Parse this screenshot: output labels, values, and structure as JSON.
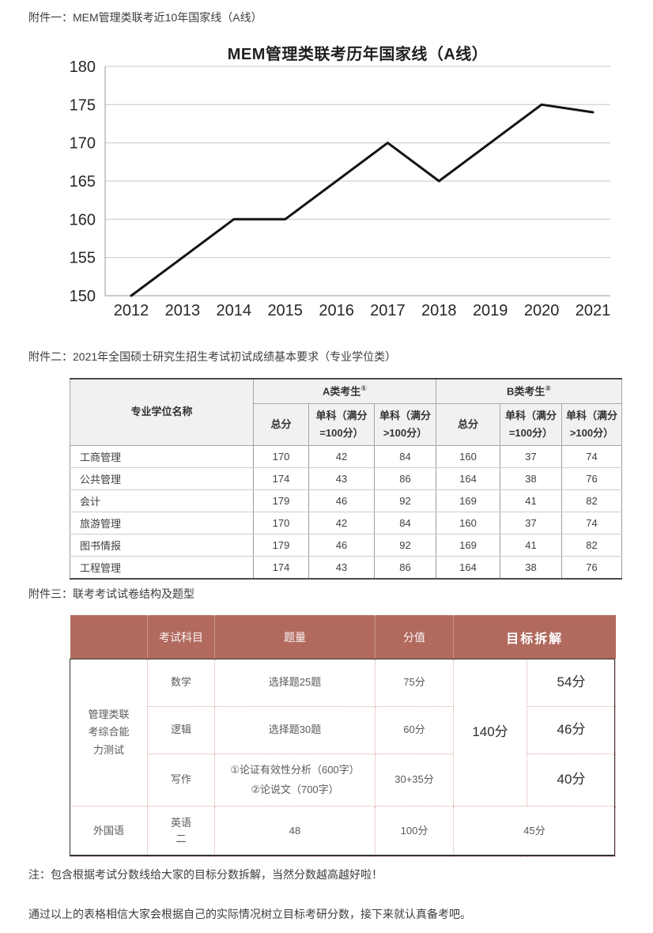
{
  "page": {
    "attachment1_heading": "附件一：MEM管理类联考近10年国家线（A线）",
    "attachment2_heading": "附件二：2021年全国硕士研究生招生考试初试成绩基本要求（专业学位类）",
    "attachment3_heading": "附件三：联考考试试卷结构及题型",
    "note1": "注：包含根据考试分数线给大家的目标分数拆解，当然分数越高越好啦！",
    "note2": "通过以上的表格相信大家会根据自己的实际情况树立目标考研分数，接下来就认真备考吧。"
  },
  "chart_data": {
    "type": "line",
    "title": "MEM管理类联考历年国家线（A线）",
    "x": [
      2012,
      2013,
      2014,
      2015,
      2016,
      2017,
      2018,
      2019,
      2020,
      2021
    ],
    "values": [
      150,
      155,
      160,
      160,
      165,
      170,
      165,
      170,
      175,
      174
    ],
    "xlabel": "",
    "ylabel": "",
    "ylim": [
      150,
      180
    ],
    "ytick_step": 5,
    "grid": true,
    "legend": "none",
    "line_color": "#141414"
  },
  "table2": {
    "col1_header": "专业学位名称",
    "group_headers": [
      {
        "label": "A类考生",
        "sup": "①"
      },
      {
        "label": "B类考生",
        "sup": "②"
      }
    ],
    "sub_headers": [
      "总分",
      "单科（满分=100分）",
      "单科（满分>100分）"
    ],
    "rows": [
      {
        "name": "工商管理",
        "values": [
          170,
          42,
          84,
          160,
          37,
          74
        ]
      },
      {
        "name": "公共管理",
        "values": [
          174,
          43,
          86,
          164,
          38,
          76
        ]
      },
      {
        "name": "会计",
        "values": [
          179,
          46,
          92,
          169,
          41,
          82
        ]
      },
      {
        "name": "旅游管理",
        "values": [
          170,
          42,
          84,
          160,
          37,
          74
        ]
      },
      {
        "name": "图书情报",
        "values": [
          179,
          46,
          92,
          169,
          41,
          82
        ]
      },
      {
        "name": "工程管理",
        "values": [
          174,
          43,
          86,
          164,
          38,
          76
        ]
      }
    ]
  },
  "table3": {
    "headers": {
      "subject": "考试科目",
      "quantity": "题量",
      "score": "分值",
      "target": "目标拆解"
    },
    "group1": {
      "label": "管理类联考综合能力测试",
      "total_target": "140分",
      "rows": [
        {
          "subject": "数学",
          "quantity": "选择题25题",
          "score": "75分",
          "target": "54分"
        },
        {
          "subject": "逻辑",
          "quantity": "选择题30题",
          "score": "60分",
          "target": "46分"
        },
        {
          "subject": "写作",
          "quantity_line1": "①论证有效性分析（600字）",
          "quantity_line2": "②论说文（700字）",
          "score": "30+35分",
          "target": "40分"
        }
      ]
    },
    "group2": {
      "label": "外国语",
      "row": {
        "subject": "英语二",
        "quantity": "48",
        "score": "100分",
        "target": "45分"
      }
    }
  },
  "colors": {
    "table3_header_bg": "#b26a5f",
    "chart_grid": "#c6c6c6",
    "chart_axis": "#9a9a9a",
    "chart_line": "#141414"
  }
}
